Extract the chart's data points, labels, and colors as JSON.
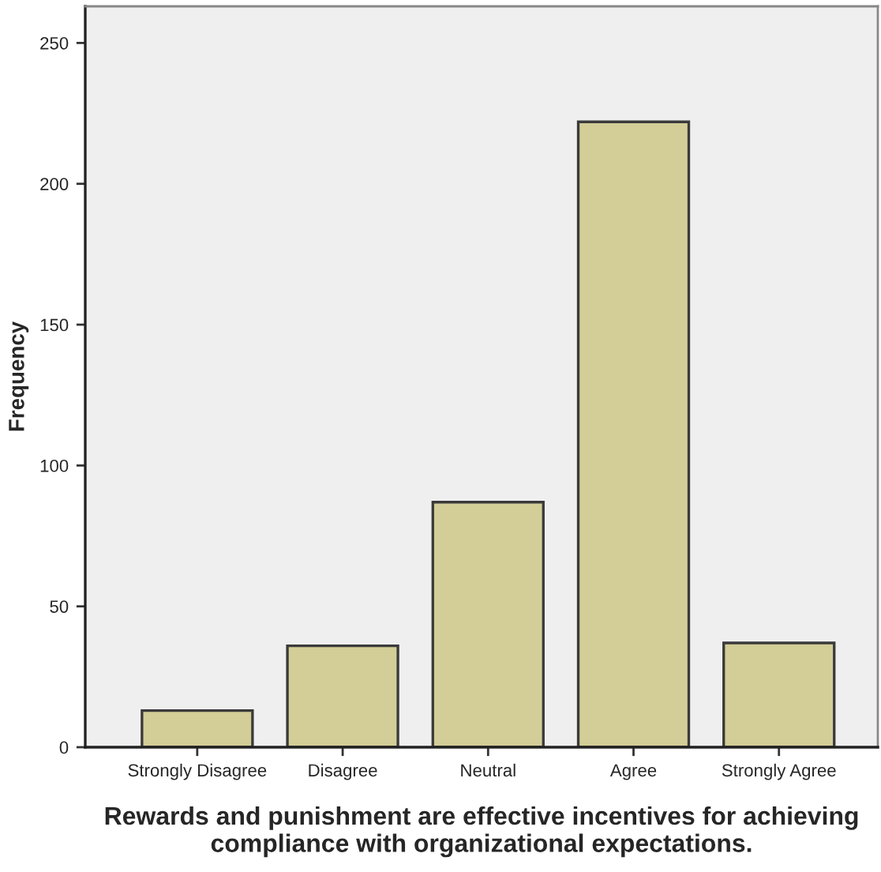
{
  "chart_data": {
    "type": "bar",
    "xlabel": "Rewards and punishment are effective incentives for achieving compliance with organizational expectations.",
    "ylabel": "Frequency",
    "categories": [
      "Strongly Disagree",
      "Disagree",
      "Neutral",
      "Agree",
      "Strongly Agree"
    ],
    "values": [
      13,
      36,
      87,
      222,
      37
    ],
    "color": "#d3ce97",
    "ylim": [
      0,
      263
    ],
    "yticks": [
      0,
      50,
      100,
      150,
      200,
      250
    ],
    "grid": false,
    "legend": false
  }
}
